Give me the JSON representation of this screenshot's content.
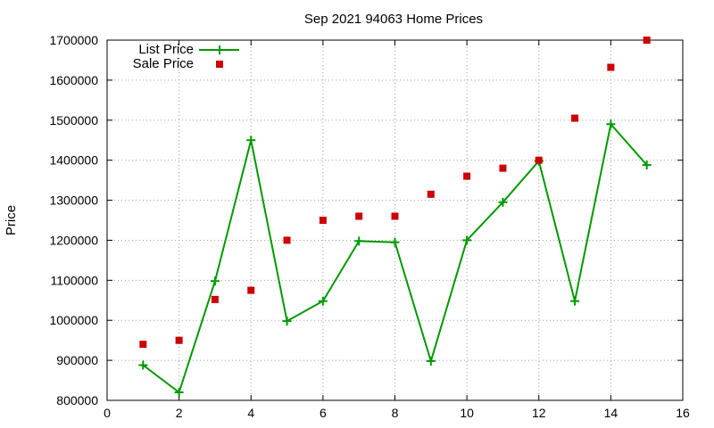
{
  "chart_data": {
    "type": "line",
    "title": "Sep 2021 94063 Home Prices",
    "xlabel": "",
    "ylabel": "Price",
    "xlim": [
      0,
      16
    ],
    "ylim": [
      800000,
      1700000
    ],
    "x_ticks": [
      0,
      2,
      4,
      6,
      8,
      10,
      12,
      14,
      16
    ],
    "y_ticks": [
      800000,
      900000,
      1000000,
      1100000,
      1200000,
      1300000,
      1400000,
      1500000,
      1600000,
      1700000
    ],
    "grid": true,
    "legend_position": "top-left",
    "series": [
      {
        "name": "List Price",
        "style": "line+cross",
        "color": "#009900",
        "x": [
          1,
          2,
          3,
          4,
          5,
          6,
          7,
          8,
          9,
          10,
          11,
          12,
          13,
          14,
          15
        ],
        "y": [
          888000,
          820000,
          1098000,
          1450000,
          998000,
          1048000,
          1198000,
          1195000,
          898000,
          1200000,
          1295000,
          1398000,
          1048000,
          1490000,
          1388000
        ]
      },
      {
        "name": "Sale Price",
        "style": "square",
        "color": "#cc0000",
        "x": [
          1,
          2,
          3,
          4,
          5,
          6,
          7,
          8,
          9,
          10,
          11,
          12,
          13,
          14,
          15
        ],
        "y": [
          940000,
          950000,
          1052000,
          1075000,
          1200000,
          1250000,
          1260000,
          1260000,
          1315000,
          1360000,
          1380000,
          1400000,
          1505000,
          1632000,
          1700000
        ]
      }
    ]
  }
}
